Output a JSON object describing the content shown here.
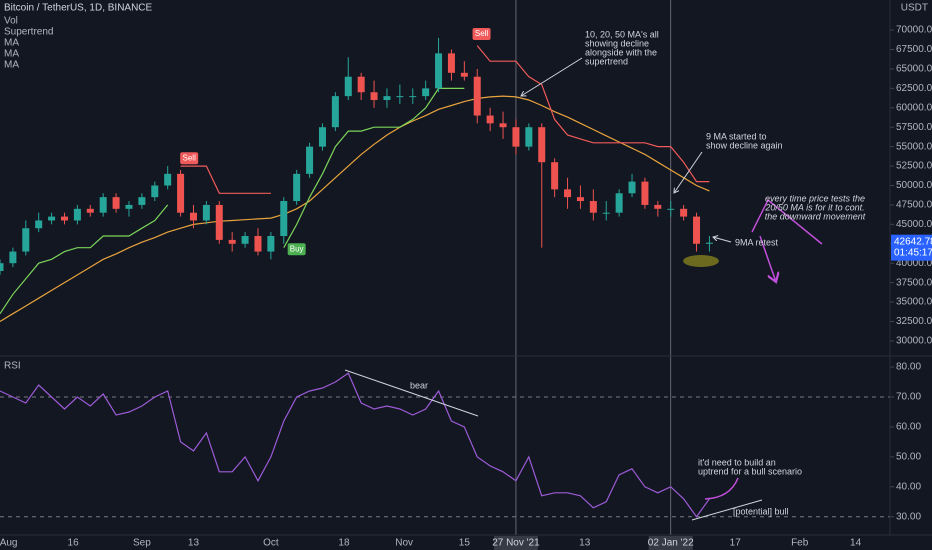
{
  "header": {
    "title": "Bitcoin / TetherUS, 1D, BINANCE",
    "indicators": [
      "Vol",
      "Supertrend",
      "MA",
      "MA",
      "MA"
    ],
    "currency": "USDT",
    "rsi_label": "RSI"
  },
  "chart_data": [
    {
      "type": "candlestick",
      "x": [
        -2,
        1,
        4,
        7,
        10,
        13,
        16,
        19,
        22,
        25,
        28,
        31,
        34,
        37,
        40,
        43,
        46,
        49,
        52,
        55,
        58,
        61,
        64,
        67,
        70,
        73,
        76,
        79,
        82,
        85,
        88,
        91,
        94,
        97,
        100,
        103,
        106,
        109,
        112,
        115,
        118,
        121,
        124,
        127,
        130,
        133,
        136,
        139,
        142,
        145,
        148,
        151,
        154,
        157,
        160,
        163
      ],
      "open": [
        39000,
        40000,
        41500,
        44500,
        45500,
        46000,
        45500,
        47000,
        46500,
        48500,
        47000,
        47500,
        48500,
        50000,
        51500,
        46500,
        45500,
        47500,
        43000,
        42500,
        43500,
        41500,
        43500,
        48000,
        51500,
        55000,
        57500,
        61500,
        64000,
        62000,
        61000,
        61500,
        61500,
        61500,
        62500,
        67000,
        64500,
        64000,
        59000,
        58000,
        57500,
        55000,
        57500,
        53000,
        49500,
        48500,
        48000,
        46500,
        46500,
        49000,
        50500,
        47500,
        47000,
        47000,
        46000,
        42500
      ],
      "high": [
        40500,
        42000,
        45500,
        46500,
        46500,
        46500,
        47500,
        47500,
        49000,
        49000,
        48000,
        49000,
        50500,
        52500,
        52000,
        47500,
        48000,
        48000,
        44000,
        44000,
        44500,
        44000,
        48500,
        52000,
        55500,
        58000,
        62000,
        66500,
        64500,
        63500,
        62500,
        63000,
        62500,
        63500,
        69000,
        67500,
        66000,
        65000,
        60000,
        59500,
        58500,
        58000,
        58000,
        53500,
        51000,
        50000,
        49500,
        48000,
        49500,
        51500,
        51000,
        48000,
        48000,
        47500,
        46500,
        43500
      ],
      "low": [
        38500,
        39500,
        41000,
        44000,
        45000,
        45000,
        45000,
        46000,
        46000,
        46500,
        46000,
        47000,
        48000,
        49500,
        46000,
        44500,
        45000,
        42500,
        41500,
        42000,
        41000,
        40500,
        42500,
        47500,
        51000,
        54500,
        57000,
        61000,
        61000,
        60000,
        60000,
        60500,
        60500,
        61000,
        62000,
        63500,
        63500,
        58000,
        57000,
        56000,
        54000,
        54500,
        42000,
        48500,
        47000,
        47000,
        45500,
        45500,
        46000,
        48500,
        47000,
        46000,
        46000,
        45500,
        41500,
        41500
      ],
      "close": [
        40000,
        41500,
        44500,
        45500,
        46000,
        45500,
        47000,
        46500,
        48500,
        47000,
        47500,
        48500,
        50000,
        51500,
        46500,
        45500,
        47500,
        43000,
        42500,
        43500,
        41500,
        43500,
        48000,
        51500,
        55000,
        57500,
        61500,
        64000,
        62000,
        61000,
        61500,
        61500,
        61500,
        62500,
        67000,
        64500,
        64000,
        59000,
        58000,
        57500,
        55000,
        57500,
        53000,
        49500,
        48500,
        48000,
        46500,
        46500,
        49000,
        50500,
        47500,
        47000,
        47000,
        46000,
        42500,
        42643
      ],
      "up_color": "#26a69a",
      "down_color": "#ef5350",
      "overlays": [
        {
          "color": "#e8a33d",
          "values": [
            32500,
            33500,
            34500,
            35500,
            36500,
            37500,
            38500,
            39500,
            40500,
            41200,
            42000,
            42700,
            43300,
            44000,
            44500,
            45000,
            45200,
            45400,
            45500,
            45600,
            45700,
            45800,
            46300,
            47000,
            48000,
            49500,
            51000,
            52500,
            54000,
            55300,
            56500,
            57500,
            58300,
            59000,
            59800,
            60300,
            60800,
            61200,
            61400,
            61500,
            61400,
            61000,
            60300,
            59500,
            58800,
            58000,
            57200,
            56400,
            55600,
            54800,
            54000,
            53000,
            52000,
            51000,
            50000,
            49300
          ]
        },
        {
          "color": "#7cd45a",
          "values": [
            33500,
            36000,
            38000,
            40000,
            40500,
            41500,
            42000,
            42000,
            43500,
            43500,
            43500,
            44500,
            45500,
            47500,
            null,
            null,
            null,
            null,
            null,
            null,
            null,
            null,
            42000,
            45000,
            48500,
            51500,
            55000,
            57000,
            57000,
            57500,
            57500,
            57500,
            58500,
            60000,
            62500,
            62500,
            62500,
            null,
            null,
            null,
            null,
            null,
            null,
            null,
            null,
            null,
            null,
            null,
            null,
            null,
            null,
            null,
            null,
            null,
            null,
            null
          ]
        },
        {
          "color": "#f05a5a",
          "values": [
            null,
            null,
            null,
            null,
            null,
            null,
            null,
            null,
            null,
            null,
            null,
            null,
            null,
            null,
            52500,
            52500,
            52500,
            49000,
            49000,
            49000,
            49000,
            49000,
            null,
            null,
            null,
            null,
            null,
            null,
            null,
            null,
            null,
            null,
            null,
            null,
            null,
            null,
            null,
            68000,
            66000,
            66000,
            66000,
            64000,
            63000,
            58500,
            56500,
            56000,
            55500,
            55500,
            55500,
            55500,
            55500,
            55000,
            55000,
            53000,
            50500,
            50500
          ]
        }
      ],
      "signals": [
        {
          "label": "Sell",
          "x": 42,
          "price": 53500
        },
        {
          "label": "Buy",
          "x": 67,
          "price": 41800
        },
        {
          "label": "Sell",
          "x": 110,
          "price": 69500
        }
      ],
      "last_price": {
        "value": 42642.78,
        "label": "42642.78"
      },
      "countdown": "01:45:17",
      "crosshairs": [
        118,
        154
      ],
      "xlim": [
        -2,
        205
      ],
      "xticks": [
        {
          "value": 0,
          "label": "Aug"
        },
        {
          "value": 15,
          "label": "16"
        },
        {
          "value": 31,
          "label": "Sep"
        },
        {
          "value": 43,
          "label": "13"
        },
        {
          "value": 61,
          "label": "Oct"
        },
        {
          "value": 78,
          "label": "18"
        },
        {
          "value": 92,
          "label": "Nov"
        },
        {
          "value": 106,
          "label": "15"
        },
        {
          "value": 118,
          "label": "27 Nov '21"
        },
        {
          "value": 134,
          "label": "13"
        },
        {
          "value": 154,
          "label": "02 Jan '22"
        },
        {
          "value": 169,
          "label": "17"
        },
        {
          "value": 184,
          "label": "Feb"
        },
        {
          "value": 197,
          "label": "14"
        }
      ],
      "ylim": [
        28060,
        73870
      ],
      "yticks": [
        {
          "value": 30000,
          "label": "30000.00"
        },
        {
          "value": 32500,
          "label": "32500.00"
        },
        {
          "value": 35000,
          "label": "35000.00"
        },
        {
          "value": 37500,
          "label": "37500.00"
        },
        {
          "value": 40000,
          "label": "40000.00"
        },
        {
          "value": 42500,
          "label": "42500.00"
        },
        {
          "value": 45000,
          "label": "45000.00"
        },
        {
          "value": 47500,
          "label": "47500.00"
        },
        {
          "value": 50000,
          "label": "50000.00"
        },
        {
          "value": 52500,
          "label": "52500.00"
        },
        {
          "value": 55000,
          "label": "55000.00"
        },
        {
          "value": 57500,
          "label": "57500.00"
        },
        {
          "value": 60000,
          "label": "60000.00"
        },
        {
          "value": 62500,
          "label": "62500.00"
        },
        {
          "value": 65000,
          "label": "65000.00"
        },
        {
          "value": 67500,
          "label": "67500.00"
        },
        {
          "value": 70000,
          "label": "70000.00"
        }
      ]
    },
    {
      "type": "line",
      "x": [
        -2,
        1,
        4,
        7,
        10,
        13,
        16,
        19,
        22,
        25,
        28,
        31,
        34,
        37,
        40,
        43,
        46,
        49,
        52,
        55,
        58,
        61,
        64,
        67,
        70,
        73,
        76,
        79,
        82,
        85,
        88,
        91,
        94,
        97,
        100,
        103,
        106,
        109,
        112,
        115,
        118,
        121,
        124,
        127,
        130,
        133,
        136,
        139,
        142,
        145,
        148,
        151,
        154,
        157,
        160,
        163
      ],
      "series": [
        {
          "color": "#9c5bd6",
          "values": [
            72,
            70,
            68,
            74,
            70,
            66,
            70,
            67,
            71,
            64,
            65,
            67,
            70,
            72,
            55,
            52,
            58,
            45,
            45,
            50,
            42,
            50,
            62,
            70,
            72,
            73,
            75,
            78,
            68,
            66,
            67,
            66,
            64,
            66,
            72,
            62,
            60,
            50,
            47,
            45,
            42,
            50,
            37,
            38,
            38,
            37,
            33,
            35,
            44,
            46,
            40,
            38,
            40,
            36,
            30,
            36
          ]
        }
      ],
      "reference_lines": [
        70,
        30
      ],
      "xlim": [
        -2,
        205
      ],
      "ylim": [
        23.9,
        83.7
      ],
      "yticks": [
        {
          "value": 80,
          "label": "80.00"
        },
        {
          "value": 70,
          "label": "70.00"
        },
        {
          "value": 60,
          "label": "60.00"
        },
        {
          "value": 50,
          "label": "50.00"
        },
        {
          "value": 40,
          "label": "40.00"
        },
        {
          "value": 30,
          "label": "30.00"
        }
      ]
    }
  ],
  "annotations": [
    [
      "10, 20, 50 MA's all",
      "showing decline",
      "alongside with the",
      "supertrend"
    ],
    [
      "9 MA started to",
      "show decline again"
    ],
    [
      "every time price tests the",
      "20/50 MA is for it to cont.",
      "the downward movement"
    ],
    [
      "9MA retest"
    ],
    [
      "bear"
    ],
    [
      "it'd need to build an",
      "uptrend for a bull scenario"
    ],
    [
      "[potential] bull"
    ]
  ]
}
